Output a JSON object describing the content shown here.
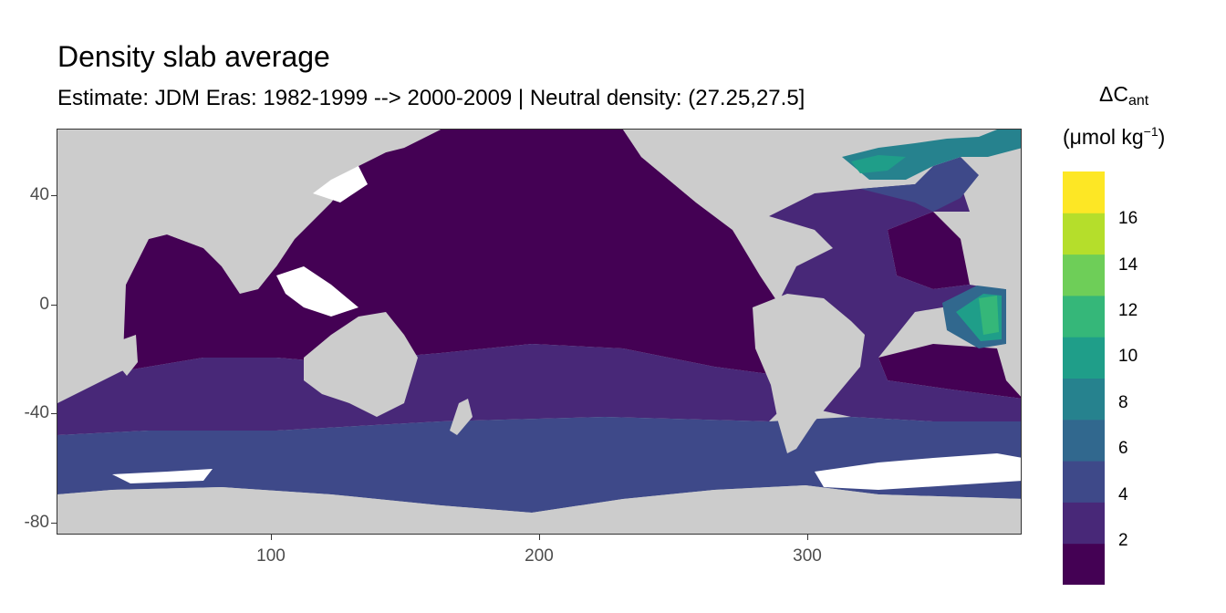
{
  "title": "Density slab average",
  "subtitle": "Estimate: JDM Eras: 1982-1999 --> 2000-2009 | Neutral density: (27.25,27.5]",
  "legend": {
    "title_main": "ΔC",
    "title_sub": "ant",
    "unit_prefix": "(μmol kg",
    "unit_sup": "−1",
    "unit_suffix": ")",
    "colors": [
      "#440154",
      "#482878",
      "#3e4989",
      "#31688e",
      "#26828e",
      "#1f9e89",
      "#35b779",
      "#6ece58",
      "#b5de2b",
      "#fde725"
    ],
    "labels": [
      "2",
      "4",
      "6",
      "8",
      "10",
      "12",
      "14",
      "16"
    ]
  },
  "axes": {
    "x_ticks": [
      "100",
      "200",
      "300"
    ],
    "y_ticks": [
      "40",
      "0",
      "-40",
      "-80"
    ]
  },
  "colors": {
    "land": "#cccccc",
    "no_data": "#ffffff"
  }
}
